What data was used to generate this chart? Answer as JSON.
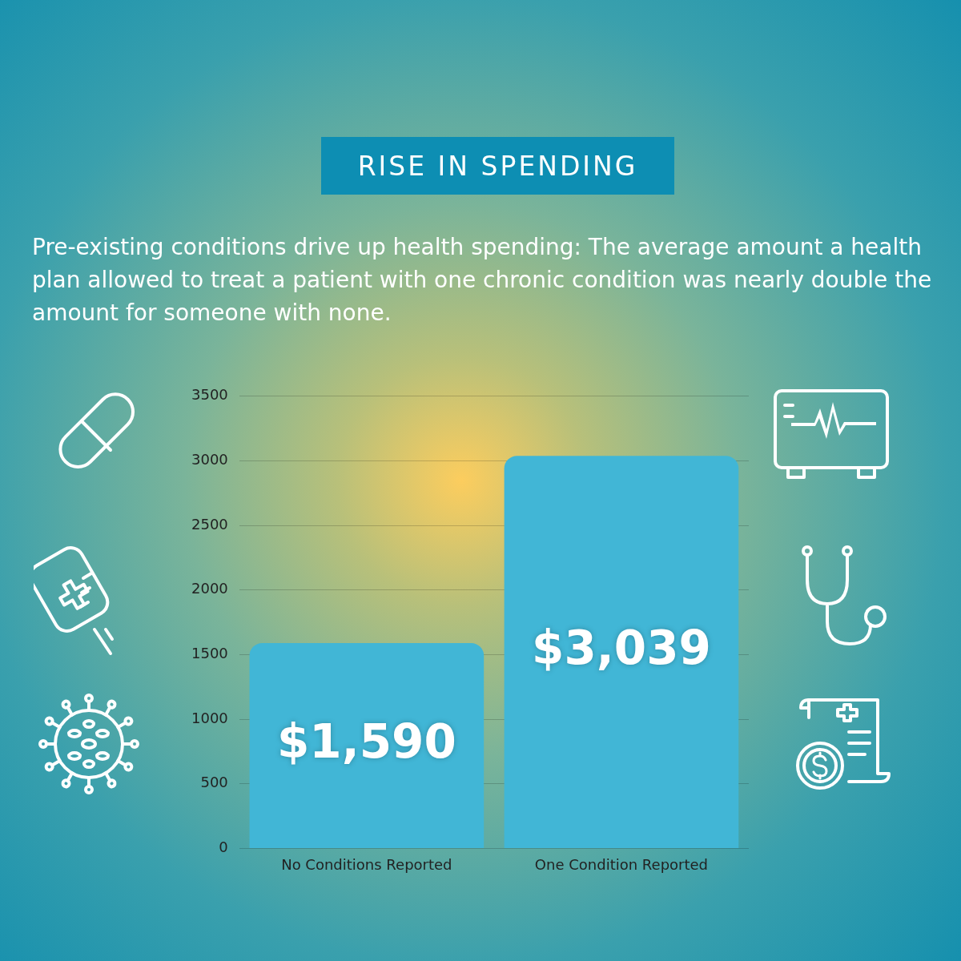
{
  "chart_data": {
    "type": "bar",
    "title": "RISE IN SPENDING",
    "subtitle": "Pre-existing conditions drive up health spending: The average amount a health plan allowed to treat a patient with one chronic condition was nearly double the amount for someone with none.",
    "categories": [
      "No Conditions Reported",
      "One Condition Reported"
    ],
    "values": [
      1590,
      3039
    ],
    "value_labels": [
      "$1,590",
      "$3,039"
    ],
    "color": "#41b6d6",
    "ylim": [
      0,
      3500
    ],
    "yticks": [
      0,
      500,
      1000,
      1500,
      2000,
      2500,
      3000,
      3500
    ],
    "grid": "y"
  }
}
